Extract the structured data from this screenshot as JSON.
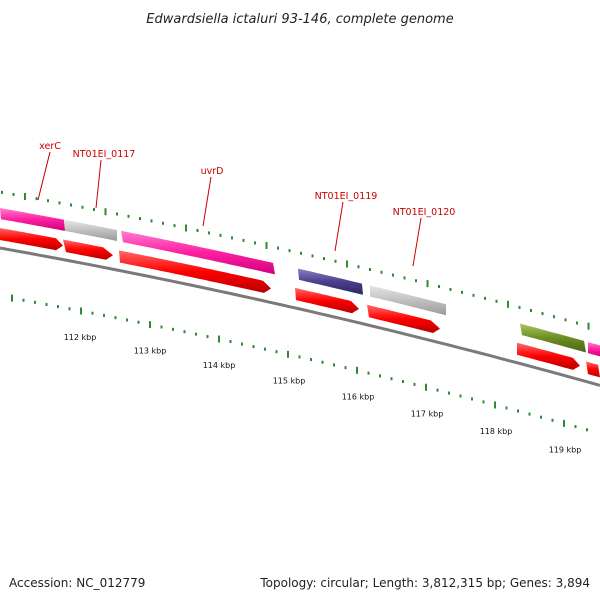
{
  "title": "Edwardsiella ictaluri 93-146, complete genome",
  "footer": {
    "accession": "Accession: NC_012779",
    "summary": "Topology: circular; Length: 3,812,315 bp; Genes: 3,894"
  },
  "colors": {
    "background": "#ffffff",
    "backbone": "#808080",
    "gc_skew_ticks": "#2e8b2e",
    "cds_forward": "#ff0000",
    "gene_magenta": "#ff1fa0",
    "gene_gray": "#c0c0c0",
    "gene_purple": "#4a3f8c",
    "gene_olive": "#6b8e23",
    "label_color": "#cc0000"
  },
  "gene_labels": [
    {
      "name": "xerC"
    },
    {
      "name": "NT01EI_0117"
    },
    {
      "name": "uvrD"
    },
    {
      "name": "NT01EI_0119"
    },
    {
      "name": "NT01EI_0120"
    }
  ],
  "genes": [
    {
      "id": "xerC",
      "color": "magenta"
    },
    {
      "id": "NT01EI_0117",
      "color": "gray"
    },
    {
      "id": "uvrD",
      "color": "magenta"
    },
    {
      "id": "NT01EI_0119",
      "color": "purple"
    },
    {
      "id": "NT01EI_0120",
      "color": "gray"
    },
    {
      "id": "unlabeled-olive",
      "color": "olive"
    },
    {
      "id": "unlabeled-edge",
      "color": "magenta"
    }
  ],
  "ticks": [
    "112 kbp",
    "113 kbp",
    "114 kbp",
    "115 kbp",
    "116 kbp",
    "117 kbp",
    "118 kbp",
    "119 kbp"
  ]
}
